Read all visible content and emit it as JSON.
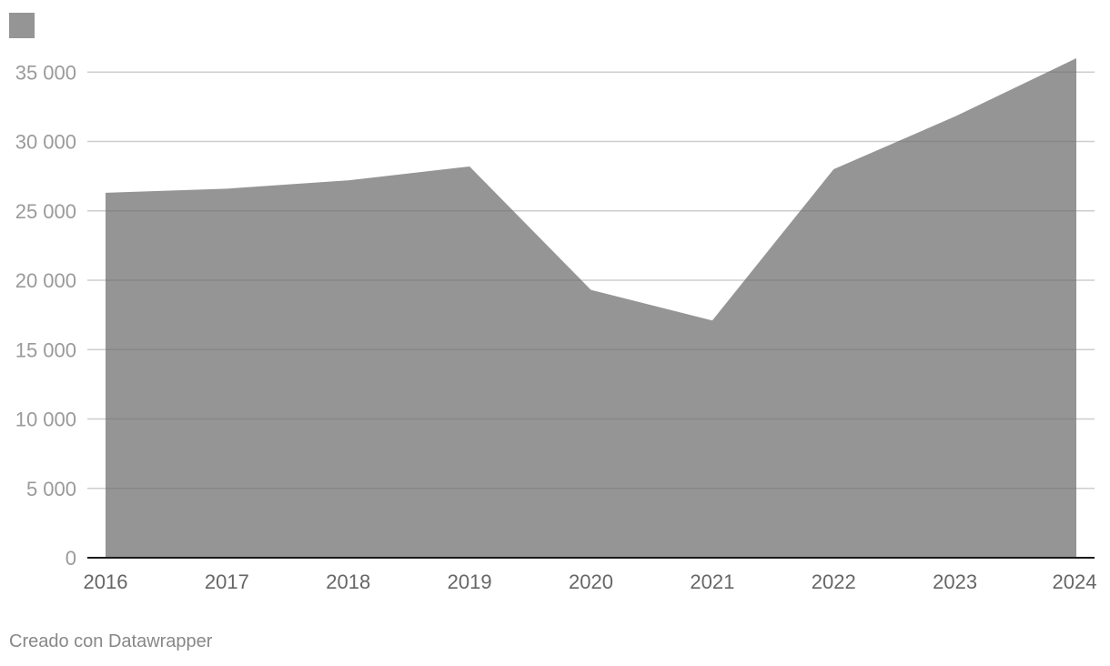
{
  "colors": {
    "area": "#959595",
    "grid": "#e3e3e3",
    "baseline": "#1a1a1a",
    "background": "#ffffff"
  },
  "credit": "Creado con Datawrapper",
  "chart_data": {
    "type": "area",
    "x": [
      2016,
      2017,
      2018,
      2019,
      2020,
      2021,
      2022,
      2023,
      2024
    ],
    "x_tick_labels": [
      "2016",
      "2017",
      "2018",
      "2019",
      "2020",
      "2021",
      "2022",
      "2023",
      "2024"
    ],
    "series": [
      {
        "values": [
          26300,
          26600,
          27200,
          28200,
          19300,
          17100,
          28000,
          31800,
          36000
        ]
      }
    ],
    "ylim": [
      0,
      36000
    ],
    "y_ticks": [
      0,
      5000,
      10000,
      15000,
      20000,
      25000,
      30000,
      35000
    ],
    "y_tick_labels": [
      "0",
      "5 000",
      "10 000",
      "15 000",
      "20 000",
      "25 000",
      "30 000",
      "35 000"
    ],
    "grid": true,
    "legend": "top-left",
    "title": "",
    "xlabel": "",
    "ylabel": ""
  }
}
